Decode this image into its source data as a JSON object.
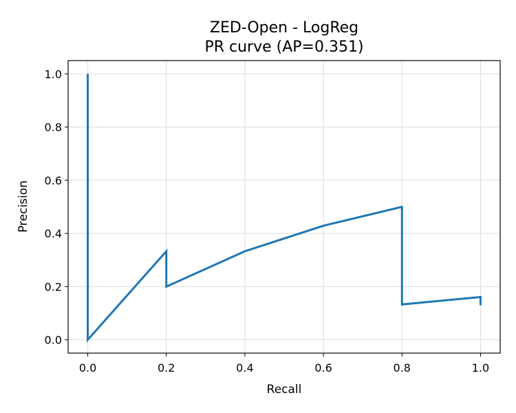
{
  "chart_data": {
    "type": "line",
    "title": "ZED-Open - LogReg",
    "subtitle": "PR curve (AP=0.351)",
    "xlabel": "Recall",
    "ylabel": "Precision",
    "xlim": [
      -0.05,
      1.05
    ],
    "ylim": [
      -0.05,
      1.05
    ],
    "xticks": [
      0.0,
      0.2,
      0.4,
      0.6,
      0.8,
      1.0
    ],
    "xtick_labels": [
      "0.0",
      "0.2",
      "0.4",
      "0.6",
      "0.8",
      "1.0"
    ],
    "yticks": [
      0.0,
      0.2,
      0.4,
      0.6,
      0.8,
      1.0
    ],
    "ytick_labels": [
      "0.0",
      "0.2",
      "0.4",
      "0.6",
      "0.8",
      "1.0"
    ],
    "grid": true,
    "series": [
      {
        "color": "#1f77b4",
        "x": [
          0.0,
          0.0,
          0.2,
          0.2,
          0.4,
          0.6,
          0.8,
          0.8,
          1.0,
          1.0
        ],
        "y": [
          1.0,
          0.0,
          0.333,
          0.2,
          0.333,
          0.429,
          0.5,
          0.133,
          0.161,
          0.13
        ]
      }
    ]
  }
}
